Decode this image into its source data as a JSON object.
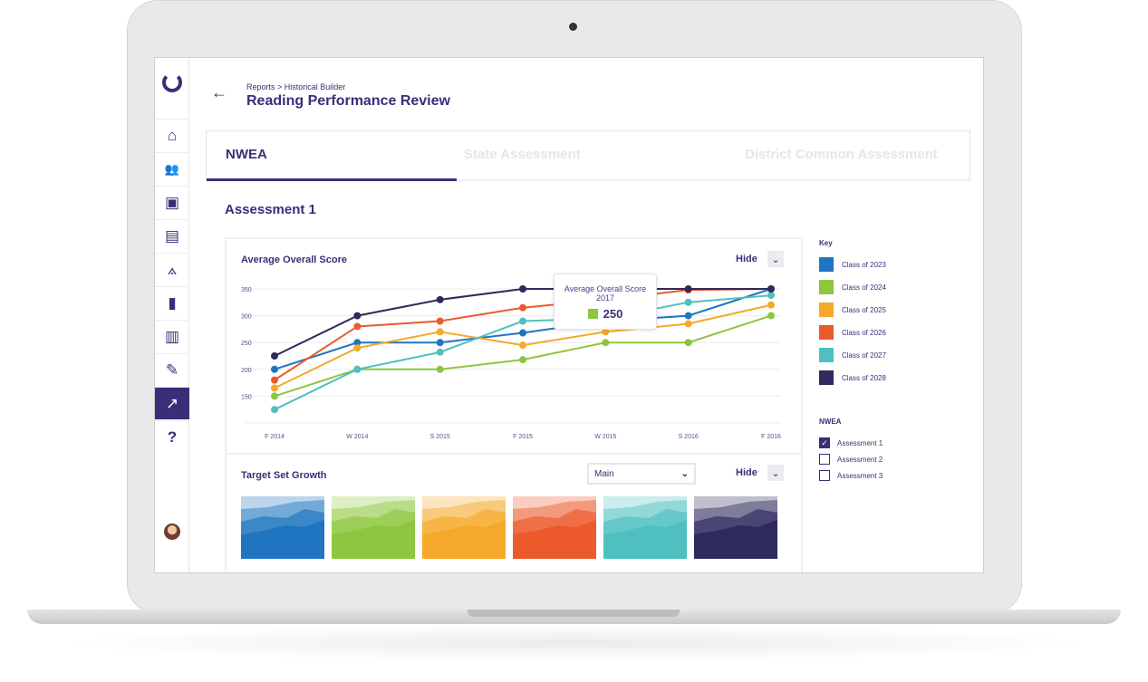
{
  "breadcrumb": "Reports > Historical Builder",
  "page_title": "Reading Performance Review",
  "tabs": [
    {
      "label": "NWEA",
      "active": true
    },
    {
      "label": "State Assessment"
    },
    {
      "label": "District Common Assessment"
    }
  ],
  "section_title": "Assessment 1",
  "sidebar": {
    "items": [
      "home-icon",
      "users-icon",
      "classroom-icon",
      "book-icon",
      "compass-icon",
      "bookmark-icon",
      "map-icon",
      "edit-icon",
      "chart-icon",
      "help-icon"
    ],
    "active": "chart-icon"
  },
  "chart_card": {
    "title": "Average Overall Score",
    "hide_label": "Hide",
    "tooltip": {
      "title": "Average Overall Score",
      "subtitle": "2017",
      "value": "250",
      "color": "#8dc63f"
    }
  },
  "growth_card": {
    "title": "Target Set Growth",
    "select_value": "Main",
    "hide_label": "Hide"
  },
  "key": {
    "title": "Key",
    "items": [
      {
        "label": "Class of 2023",
        "color": "#1f75bf"
      },
      {
        "label": "Class of 2024",
        "color": "#8dc63f"
      },
      {
        "label": "Class of 2025",
        "color": "#f5a92a"
      },
      {
        "label": "Class of 2026",
        "color": "#ec5a2b"
      },
      {
        "label": "Class of 2027",
        "color": "#4fc0c0"
      },
      {
        "label": "Class of 2028",
        "color": "#2e2a5e"
      }
    ]
  },
  "filter": {
    "title": "NWEA",
    "items": [
      {
        "label": "Assessment 1",
        "checked": true
      },
      {
        "label": "Assessment 2",
        "checked": false
      },
      {
        "label": "Assessment 3",
        "checked": false
      }
    ]
  },
  "chart_data": {
    "type": "line",
    "title": "Average Overall Score",
    "categories": [
      "F 2014",
      "W 2014",
      "S 2015",
      "F 2015",
      "W 2015",
      "S 2016",
      "F 2016"
    ],
    "yticks": [
      150,
      200,
      250,
      300,
      350
    ],
    "ylim": [
      100,
      350
    ],
    "grid": true,
    "series": [
      {
        "name": "Class of 2023",
        "color": "#1f75bf",
        "values": [
          200,
          250,
          250,
          268,
          290,
          300,
          350
        ]
      },
      {
        "name": "Class of 2024",
        "color": "#8dc63f",
        "values": [
          150,
          200,
          200,
          218,
          250,
          250,
          300
        ]
      },
      {
        "name": "Class of 2025",
        "color": "#f5a92a",
        "values": [
          165,
          240,
          270,
          245,
          270,
          285,
          320
        ]
      },
      {
        "name": "Class of 2026",
        "color": "#ec5a2b",
        "values": [
          180,
          280,
          290,
          315,
          330,
          348,
          350
        ]
      },
      {
        "name": "Class of 2027",
        "color": "#4fc0c0",
        "values": [
          125,
          200,
          232,
          290,
          295,
          325,
          338
        ]
      },
      {
        "name": "Class of 2028",
        "color": "#2e2a5e",
        "values": [
          225,
          300,
          330,
          350,
          350,
          350,
          350
        ]
      }
    ]
  }
}
